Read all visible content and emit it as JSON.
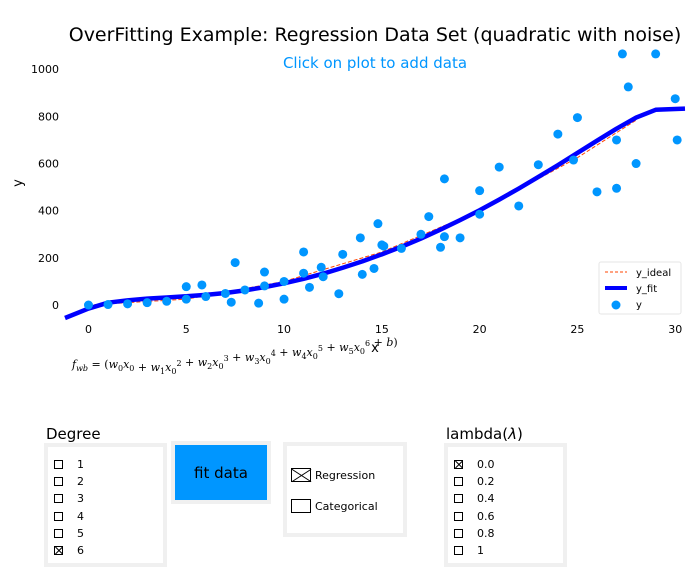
{
  "title": "OverFitting Example: Regression Data Set (quadratic with noise)",
  "hint": "Click on plot to add data",
  "formula_parts": [
    "w",
    "0",
    "x",
    "0",
    "+",
    "w",
    "1",
    "x",
    "0",
    "2",
    "+",
    "w",
    "2",
    "x",
    "0",
    "3",
    "+",
    "w",
    "3",
    "x",
    "0",
    "4",
    "+",
    "w",
    "4",
    "x",
    "0",
    "5",
    "+",
    "w",
    "5",
    "x",
    "0",
    "6",
    "+",
    "b"
  ],
  "formula_lhs_main": "f",
  "formula_lhs_sub": "wb",
  "formula_eq": " = (",
  "formula_close": ")",
  "colors": {
    "ideal": "#ff4500",
    "fit": "#0000ff",
    "points": "#0096ff",
    "hint": "#0096ff",
    "button": "#0096ff"
  },
  "chart_data": {
    "type": "scatter",
    "title": "OverFitting Example: Regression Data Set (quadratic with noise)",
    "xlabel": "x",
    "ylabel": "y",
    "xlim": [
      -1.2,
      30.5
    ],
    "ylim": [
      -55,
      1090
    ],
    "xticks": [
      "0",
      "5",
      "10",
      "15",
      "20",
      "25",
      "30"
    ],
    "xtick_values": [
      0,
      5,
      10,
      15,
      20,
      25,
      30
    ],
    "yticks": [
      "0",
      "200",
      "400",
      "600",
      "800",
      "1000"
    ],
    "ytick_values": [
      0,
      200,
      400,
      600,
      800,
      1000
    ],
    "legend": {
      "position": "lower-right",
      "entries": [
        "y_ideal",
        "y_fit",
        "y"
      ]
    },
    "y_ideal": {
      "x": [
        0,
        5,
        10,
        15,
        20,
        25,
        28
      ],
      "y": [
        0,
        25,
        100,
        225,
        400,
        625,
        784
      ]
    },
    "y_fit": {
      "x": [
        -1.2,
        0,
        1,
        2,
        3,
        4,
        5,
        6,
        7,
        8,
        9,
        10,
        11,
        12,
        13,
        14,
        15,
        16,
        17,
        18,
        19,
        20,
        21,
        22,
        23,
        24,
        25,
        26,
        27,
        28,
        29,
        30.5
      ],
      "y": [
        -55,
        -15,
        10,
        20,
        27,
        32,
        37,
        43,
        51,
        62,
        76,
        92,
        111,
        133,
        158,
        185,
        215,
        247,
        282,
        320,
        360,
        402,
        447,
        494,
        543,
        593,
        645,
        697,
        748,
        795,
        828,
        833
      ]
    },
    "y_points": {
      "x": [
        0,
        1,
        2,
        3,
        4,
        5,
        5,
        5.8,
        6,
        7,
        7.3,
        7.5,
        8,
        8.7,
        9,
        9,
        10,
        10,
        11,
        11,
        11.3,
        11.9,
        12,
        12.8,
        13,
        13.9,
        14,
        14.6,
        14.8,
        15,
        15.1,
        16,
        17,
        17.4,
        18,
        18.2,
        18.2,
        19,
        20,
        20,
        21,
        22,
        23,
        24,
        24.8,
        25,
        26,
        27,
        27,
        27.3,
        27.6,
        28,
        29,
        30,
        30.1
      ],
      "y": [
        0,
        2,
        5,
        10,
        16,
        25,
        78,
        85,
        36,
        49,
        12,
        180,
        64,
        8,
        81,
        140,
        25,
        100,
        225,
        135,
        75,
        160,
        120,
        48,
        215,
        285,
        130,
        155,
        345,
        255,
        250,
        240,
        300,
        375,
        245,
        535,
        290,
        285,
        485,
        385,
        585,
        420,
        595,
        725,
        615,
        795,
        480,
        495,
        700,
        1065,
        925,
        600,
        1065,
        875,
        700
      ]
    }
  },
  "degree": {
    "label": "Degree",
    "options": [
      {
        "label": "1",
        "checked": false
      },
      {
        "label": "2",
        "checked": false
      },
      {
        "label": "3",
        "checked": false
      },
      {
        "label": "4",
        "checked": false
      },
      {
        "label": "5",
        "checked": false
      },
      {
        "label": "6",
        "checked": true
      }
    ]
  },
  "fit_button": {
    "label": "fit data"
  },
  "mode": {
    "options": [
      {
        "label": "Regression",
        "checked": true
      },
      {
        "label": "Categorical",
        "checked": false
      }
    ]
  },
  "lambda": {
    "label_prefix": "lambda(",
    "label_symbol": "λ",
    "label_suffix": ")",
    "options": [
      {
        "label": "0.0",
        "checked": true
      },
      {
        "label": "0.2",
        "checked": false
      },
      {
        "label": "0.4",
        "checked": false
      },
      {
        "label": "0.6",
        "checked": false
      },
      {
        "label": "0.8",
        "checked": false
      },
      {
        "label": "1",
        "checked": false
      }
    ]
  }
}
